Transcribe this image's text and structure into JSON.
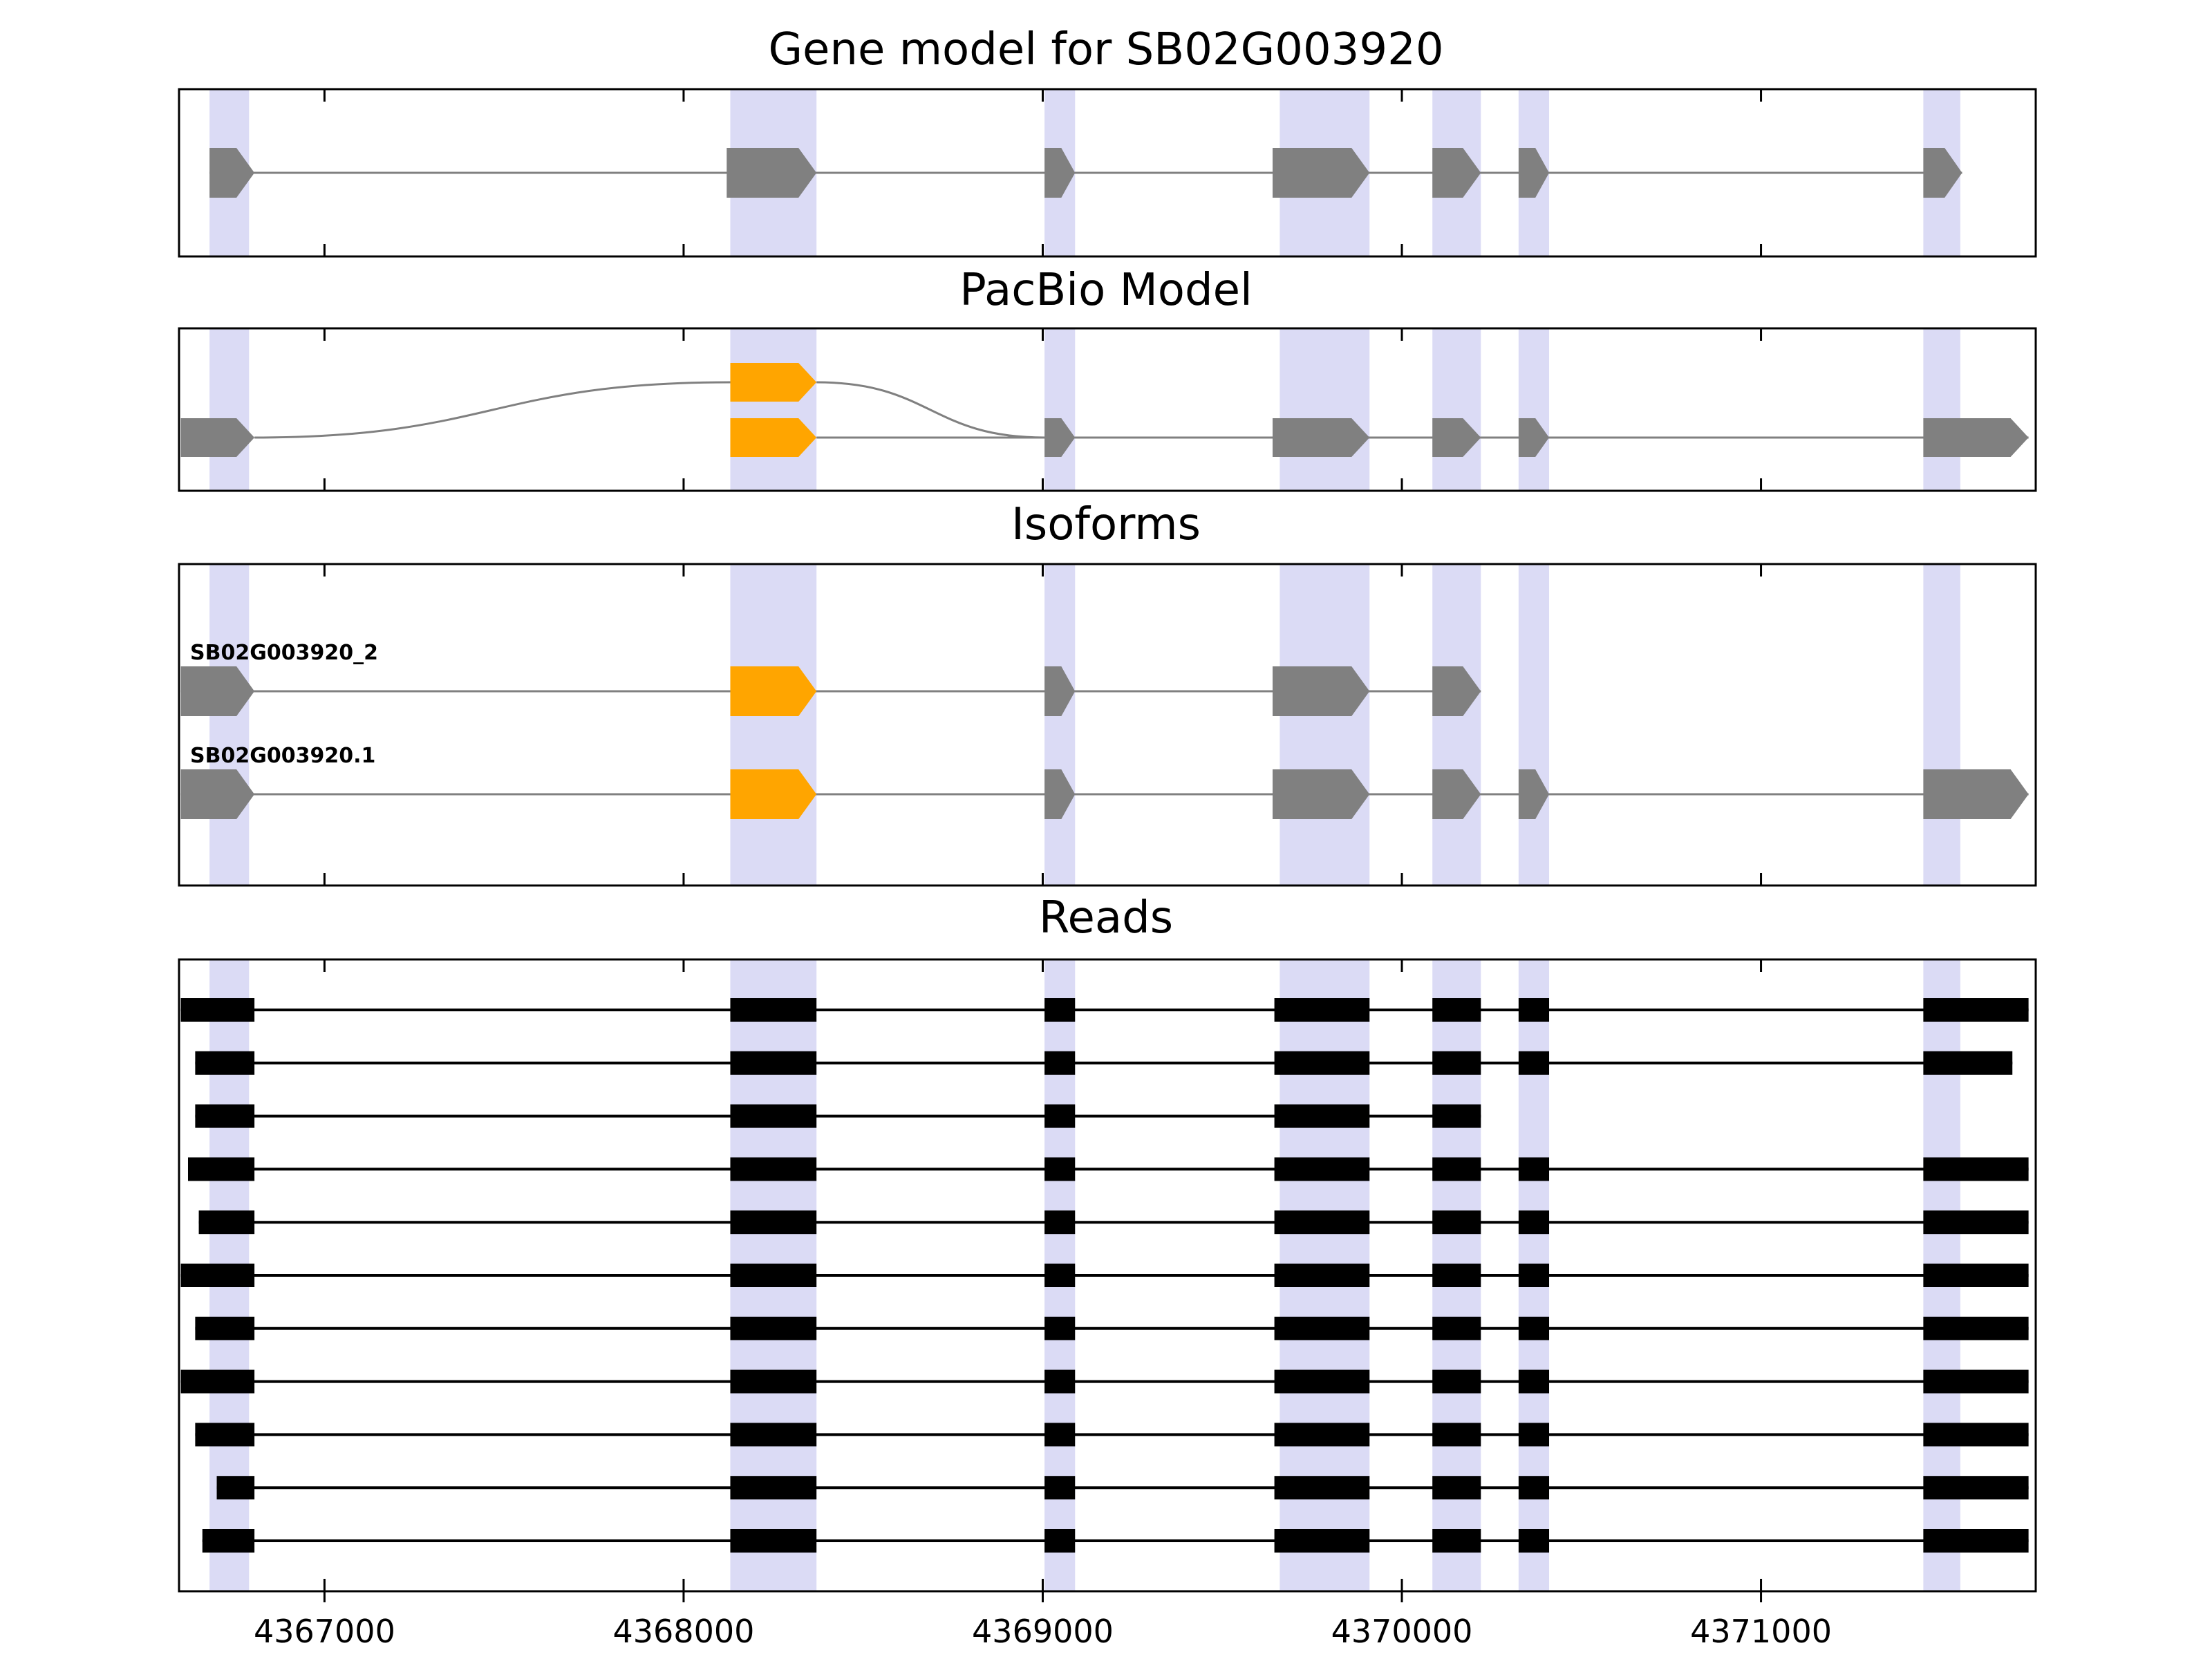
{
  "colors": {
    "gray": "#808080",
    "orange": "#FFA500",
    "black": "#000000",
    "band": "#DBDBF5",
    "border": "#000000"
  },
  "chart_data": {
    "type": "gene-model-tracks",
    "gene_id": "SB02G003920",
    "x_axis": {
      "min": 4366595,
      "max": 4371765,
      "ticks": [
        4367000,
        4368000,
        4369000,
        4370000,
        4371000
      ],
      "tick_labels": [
        "4367000",
        "4368000",
        "4369000",
        "4370000",
        "4371000"
      ]
    },
    "highlight_bands": [
      [
        4366680,
        4366790
      ],
      [
        4368130,
        4368370
      ],
      [
        4369005,
        4369090
      ],
      [
        4369660,
        4369910
      ],
      [
        4370085,
        4370220
      ],
      [
        4370325,
        4370410
      ],
      [
        4371452,
        4371555
      ]
    ],
    "panels": [
      {
        "id": "gene_model",
        "title": "Gene model for SB02G003920",
        "rows": [
          {
            "label": "",
            "line": [
              4366680,
              4371560
            ],
            "exons": [
              {
                "start": 4366680,
                "end": 4366805,
                "color": "gray"
              },
              {
                "start": 4368120,
                "end": 4368370,
                "color": "gray"
              },
              {
                "start": 4369005,
                "end": 4369090,
                "color": "gray"
              },
              {
                "start": 4369640,
                "end": 4369910,
                "color": "gray"
              },
              {
                "start": 4370085,
                "end": 4370220,
                "color": "gray"
              },
              {
                "start": 4370325,
                "end": 4370410,
                "color": "gray"
              },
              {
                "start": 4371452,
                "end": 4371560,
                "color": "gray"
              }
            ]
          }
        ]
      },
      {
        "id": "pacbio",
        "title": "PacBio Model",
        "rows": [
          {
            "label": "",
            "line": [
              4368370,
              4371745
            ],
            "arcs": [
              {
                "from": 4366805,
                "to": 4368130,
                "from_level": "main",
                "to_level": "upper"
              },
              {
                "from": 4368370,
                "to": 4369005,
                "from_level": "upper",
                "to_level": "main"
              }
            ],
            "exons": [
              {
                "start": 4366600,
                "end": 4366805,
                "color": "gray"
              },
              {
                "start": 4368130,
                "end": 4368370,
                "color": "orange",
                "level": "upper"
              },
              {
                "start": 4368130,
                "end": 4368370,
                "color": "orange"
              },
              {
                "start": 4369005,
                "end": 4369090,
                "color": "gray"
              },
              {
                "start": 4369640,
                "end": 4369910,
                "color": "gray"
              },
              {
                "start": 4370085,
                "end": 4370220,
                "color": "gray"
              },
              {
                "start": 4370325,
                "end": 4370410,
                "color": "gray"
              },
              {
                "start": 4371452,
                "end": 4371745,
                "color": "gray"
              }
            ]
          }
        ]
      },
      {
        "id": "isoforms",
        "title": "Isoforms",
        "rows": [
          {
            "label": "SB02G003920_2",
            "line": [
              4366600,
              4370220
            ],
            "exons": [
              {
                "start": 4366600,
                "end": 4366805,
                "color": "gray"
              },
              {
                "start": 4368130,
                "end": 4368370,
                "color": "orange"
              },
              {
                "start": 4369005,
                "end": 4369090,
                "color": "gray"
              },
              {
                "start": 4369640,
                "end": 4369910,
                "color": "gray"
              },
              {
                "start": 4370085,
                "end": 4370220,
                "color": "gray"
              }
            ]
          },
          {
            "label": "SB02G003920.1",
            "line": [
              4366600,
              4371745
            ],
            "exons": [
              {
                "start": 4366600,
                "end": 4366805,
                "color": "gray"
              },
              {
                "start": 4368130,
                "end": 4368370,
                "color": "orange"
              },
              {
                "start": 4369005,
                "end": 4369090,
                "color": "gray"
              },
              {
                "start": 4369640,
                "end": 4369910,
                "color": "gray"
              },
              {
                "start": 4370085,
                "end": 4370220,
                "color": "gray"
              },
              {
                "start": 4370325,
                "end": 4370410,
                "color": "gray"
              },
              {
                "start": 4371452,
                "end": 4371745,
                "color": "gray"
              }
            ]
          }
        ]
      },
      {
        "id": "reads",
        "title": "Reads",
        "exon_blocks": [
          [
            4366600,
            4366805
          ],
          [
            4368130,
            4368370
          ],
          [
            4369005,
            4369090
          ],
          [
            4369645,
            4369910
          ],
          [
            4370085,
            4370220
          ],
          [
            4370325,
            4370410
          ],
          [
            4371452,
            4371745
          ]
        ],
        "reads": [
          {
            "start": 4366600,
            "end": 4371745,
            "blocks": [
              0,
              1,
              2,
              3,
              4,
              5,
              6
            ]
          },
          {
            "start": 4366640,
            "end": 4371700,
            "blocks": [
              0,
              1,
              2,
              3,
              4,
              5,
              6
            ]
          },
          {
            "start": 4366640,
            "end": 4370220,
            "blocks": [
              0,
              1,
              2,
              3,
              4
            ]
          },
          {
            "start": 4366620,
            "end": 4371745,
            "blocks": [
              0,
              1,
              2,
              3,
              4,
              5,
              6
            ]
          },
          {
            "start": 4366650,
            "end": 4371745,
            "blocks": [
              0,
              1,
              2,
              3,
              4,
              5,
              6
            ]
          },
          {
            "start": 4366600,
            "end": 4371745,
            "blocks": [
              0,
              1,
              2,
              3,
              4,
              5,
              6
            ]
          },
          {
            "start": 4366640,
            "end": 4371745,
            "blocks": [
              0,
              1,
              2,
              3,
              4,
              5,
              6
            ]
          },
          {
            "start": 4366600,
            "end": 4371745,
            "blocks": [
              0,
              1,
              2,
              3,
              4,
              5,
              6
            ]
          },
          {
            "start": 4366640,
            "end": 4371745,
            "blocks": [
              0,
              1,
              2,
              3,
              4,
              5,
              6
            ]
          },
          {
            "start": 4366700,
            "end": 4371745,
            "blocks": [
              0,
              1,
              2,
              3,
              4,
              5,
              6
            ]
          },
          {
            "start": 4366660,
            "end": 4371745,
            "blocks": [
              0,
              1,
              2,
              3,
              4,
              5,
              6
            ]
          }
        ]
      }
    ]
  }
}
